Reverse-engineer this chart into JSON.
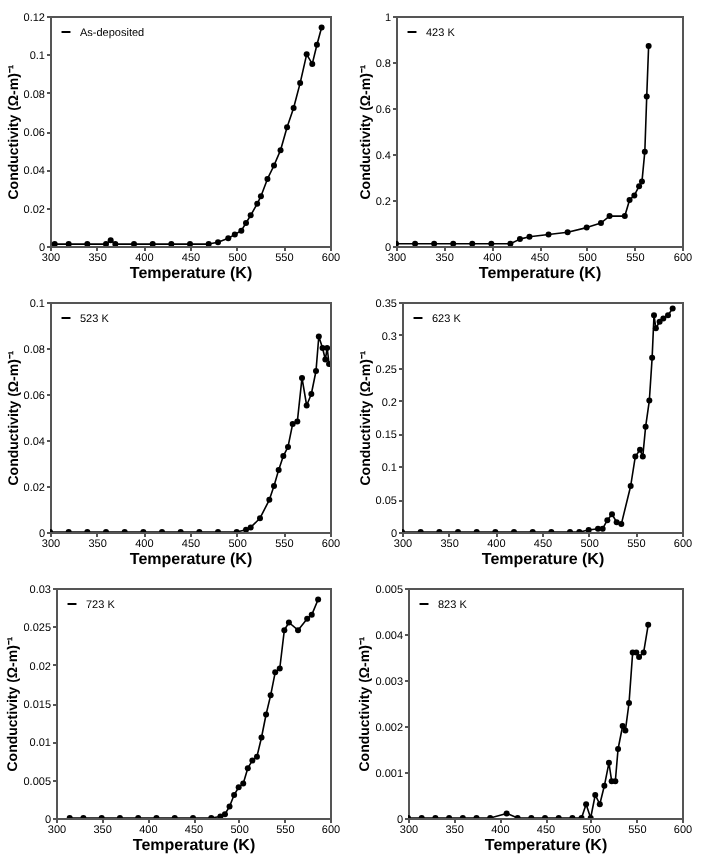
{
  "chart_data": [
    {
      "type": "line",
      "xlabel": "Temperature (K)",
      "ylabel": "Conductivity (Ω-m)⁻¹",
      "legend": "top left",
      "marker": "circle",
      "xlim": [
        300,
        600
      ],
      "xticks": [
        300,
        350,
        400,
        450,
        500,
        550,
        600
      ],
      "ylim": [
        0,
        0.12
      ],
      "yticks": [
        0,
        0.02,
        0.04,
        0.06,
        0.08,
        0.1,
        0.12
      ],
      "x": [
        305,
        320,
        340,
        360,
        365,
        370,
        390,
        410,
        430,
        450,
        470,
        480,
        491,
        498,
        505,
        510,
        515,
        522,
        526,
        533,
        540,
        547,
        554,
        561,
        568,
        575,
        581,
        586,
        591
      ],
      "series": [
        {
          "name": "As-deposited",
          "color": "#000000",
          "values": [
            0.001,
            0.001,
            0.001,
            0.001,
            0.003,
            0.001,
            0.001,
            0.001,
            0.001,
            0.001,
            0.001,
            0.002,
            0.004,
            0.006,
            0.008,
            0.012,
            0.016,
            0.022,
            0.026,
            0.035,
            0.042,
            0.05,
            0.062,
            0.072,
            0.085,
            0.1,
            0.095,
            0.105,
            0.114
          ]
        }
      ]
    },
    {
      "type": "line",
      "xlabel": "Temperature (K)",
      "ylabel": "Conductivity (Ω-m)⁻¹",
      "legend": "top left",
      "marker": "circle",
      "xlim": [
        300,
        600
      ],
      "xticks": [
        300,
        350,
        400,
        450,
        500,
        550,
        600
      ],
      "ylim": [
        0,
        1
      ],
      "yticks": [
        0,
        0.2,
        0.4,
        0.6,
        0.8,
        1
      ],
      "x": [
        300,
        320,
        340,
        360,
        380,
        400,
        420,
        430,
        440,
        460,
        480,
        500,
        515,
        524,
        540,
        545,
        550,
        555,
        558,
        561,
        563,
        565
      ],
      "series": [
        {
          "name": "423 K",
          "color": "#000000",
          "values": [
            0.01,
            0.01,
            0.01,
            0.01,
            0.01,
            0.01,
            0.01,
            0.03,
            0.04,
            0.05,
            0.06,
            0.08,
            0.1,
            0.13,
            0.13,
            0.2,
            0.22,
            0.26,
            0.28,
            0.41,
            0.65,
            0.87
          ]
        }
      ]
    },
    {
      "type": "line",
      "xlabel": "Temperature (K)",
      "ylabel": "Conductivity (Ω-m)⁻¹",
      "legend": "top left",
      "marker": "circle",
      "xlim": [
        300,
        600
      ],
      "xticks": [
        300,
        350,
        400,
        450,
        500,
        550,
        600
      ],
      "ylim": [
        0,
        0.1
      ],
      "yticks": [
        0,
        0.02,
        0.04,
        0.06,
        0.08,
        0.1
      ],
      "x": [
        300,
        320,
        340,
        360,
        380,
        400,
        420,
        440,
        460,
        480,
        500,
        510,
        515,
        525,
        535,
        540,
        545,
        550,
        555,
        560,
        565,
        570,
        575,
        580,
        585,
        588,
        592,
        595,
        597,
        599
      ],
      "series": [
        {
          "name": "523 K",
          "color": "#000000",
          "values": [
            0,
            0,
            0,
            0,
            0,
            0,
            0,
            0,
            0,
            0,
            0,
            0.001,
            0.002,
            0.006,
            0.014,
            0.02,
            0.027,
            0.033,
            0.037,
            0.047,
            0.048,
            0.067,
            0.055,
            0.06,
            0.07,
            0.085,
            0.08,
            0.075,
            0.08,
            0.073
          ]
        }
      ]
    },
    {
      "type": "line",
      "xlabel": "Temperature (K)",
      "ylabel": "Conductivity (Ω-m)⁻¹",
      "legend": "top left",
      "marker": "circle",
      "xlim": [
        300,
        600
      ],
      "xticks": [
        300,
        350,
        400,
        450,
        500,
        550,
        600
      ],
      "ylim": [
        0,
        0.35
      ],
      "yticks": [
        0,
        0.05,
        0.1,
        0.15,
        0.2,
        0.25,
        0.3,
        0.35
      ],
      "x": [
        300,
        320,
        340,
        360,
        380,
        400,
        420,
        440,
        460,
        480,
        490,
        500,
        510,
        515,
        520,
        525,
        530,
        535,
        545,
        550,
        555,
        558,
        561,
        565,
        568,
        570,
        572,
        576,
        580,
        585,
        590
      ],
      "series": [
        {
          "name": "623 K",
          "color": "#000000",
          "values": [
            0,
            0,
            0,
            0,
            0,
            0,
            0,
            0,
            0,
            0,
            0,
            0.003,
            0.005,
            0.005,
            0.018,
            0.027,
            0.015,
            0.012,
            0.07,
            0.115,
            0.125,
            0.115,
            0.16,
            0.2,
            0.265,
            0.33,
            0.31,
            0.32,
            0.325,
            0.33,
            0.34
          ]
        }
      ]
    },
    {
      "type": "line",
      "xlabel": "Temperature (K)",
      "ylabel": "Conductivity (Ω-m)⁻¹",
      "legend": "top left",
      "marker": "circle",
      "xlim": [
        300,
        600
      ],
      "xticks": [
        300,
        350,
        400,
        450,
        500,
        550,
        600
      ],
      "ylim": [
        0,
        0.03
      ],
      "yticks": [
        0,
        0.005,
        0.01,
        0.015,
        0.02,
        0.025,
        0.03
      ],
      "x": [
        315,
        330,
        350,
        370,
        390,
        410,
        430,
        450,
        470,
        480,
        485,
        490,
        495,
        500,
        505,
        510,
        515,
        520,
        525,
        530,
        535,
        540,
        545,
        550,
        555,
        565,
        575,
        580,
        587
      ],
      "series": [
        {
          "name": "723 K",
          "color": "#000000",
          "values": [
            0,
            0,
            0,
            0,
            0,
            0,
            0,
            0,
            0,
            0.0002,
            0.0005,
            0.0015,
            0.003,
            0.004,
            0.0045,
            0.0065,
            0.0075,
            0.008,
            0.0105,
            0.0135,
            0.016,
            0.019,
            0.0195,
            0.0245,
            0.0255,
            0.0245,
            0.026,
            0.0265,
            0.0285
          ]
        }
      ]
    },
    {
      "type": "line",
      "xlabel": "Temperature (K)",
      "ylabel": "Conductivity (Ω-m)⁻¹",
      "legend": "top left",
      "marker": "circle",
      "xlim": [
        300,
        600
      ],
      "xticks": [
        300,
        350,
        400,
        450,
        500,
        550,
        600
      ],
      "ylim": [
        0,
        0.005
      ],
      "yticks": [
        0,
        0.001,
        0.002,
        0.003,
        0.004,
        0.005
      ],
      "x": [
        300,
        315,
        330,
        345,
        360,
        375,
        390,
        408,
        420,
        435,
        450,
        465,
        480,
        490,
        495,
        500,
        505,
        510,
        515,
        520,
        523,
        527,
        530,
        535,
        538,
        542,
        546,
        550,
        553,
        558,
        563
      ],
      "series": [
        {
          "name": "823 K",
          "color": "#000000",
          "values": [
            0,
            0,
            0,
            0,
            0,
            0,
            0,
            0.0001,
            0,
            0,
            0,
            0,
            0,
            0,
            0.0003,
            0,
            0.0005,
            0.0003,
            0.0007,
            0.0012,
            0.0008,
            0.0008,
            0.0015,
            0.002,
            0.0019,
            0.0025,
            0.0036,
            0.0036,
            0.0035,
            0.0036,
            0.0042
          ]
        }
      ]
    }
  ]
}
